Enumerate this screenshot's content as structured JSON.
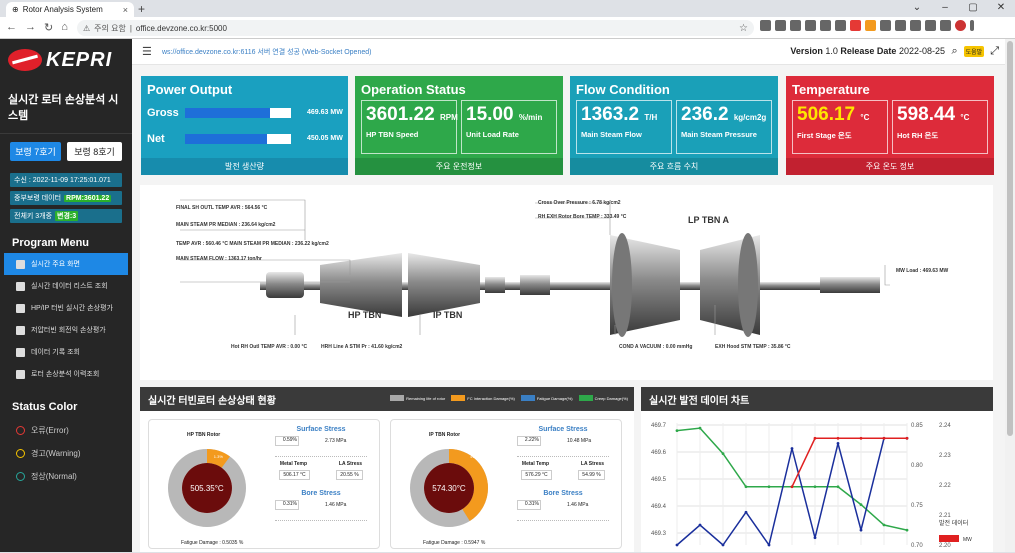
{
  "browser": {
    "tab_title": "Rotor Analysis System",
    "security_label": "주의 요함",
    "url": "office.devzone.co.kr:5000"
  },
  "sidebar": {
    "logo_text": "KEPRI",
    "system_title": "실시간 로터 손상분석 시스템",
    "unit7": "보령 7호기",
    "unit8": "보령 8호기",
    "received": "수신 : 2022-11-09 17:25:01.071",
    "load_label": "중부보령 데이터",
    "rpm_tag": "RPM:3601.22",
    "total_label": "전체키 3개중",
    "change_tag": "변경:3",
    "menu_title": "Program Menu",
    "menu": [
      {
        "label": "실시간 주요 화면",
        "icon": "home-icon"
      },
      {
        "label": "실시간 데이터 리스트 조회",
        "icon": "grid-icon"
      },
      {
        "label": "HP/IP 터빈 실시간 손상평가",
        "icon": "pie-chart-icon"
      },
      {
        "label": "저압터빈 회전익 손상평가",
        "icon": "tune-icon"
      },
      {
        "label": "데이터 기록 조회",
        "icon": "folder-icon"
      },
      {
        "label": "로터 손상분석 이력조회",
        "icon": "mail-icon"
      }
    ],
    "status_title": "Status Color",
    "status": [
      {
        "label": "오류(Error)",
        "color": "#e53935"
      },
      {
        "label": "경고(Warning)",
        "color": "#f6c400"
      },
      {
        "label": "정상(Normal)",
        "color": "#26a69a"
      }
    ]
  },
  "topbar": {
    "ws": "ws://office.devzone.co.kr:6116 서버 연결 성공 (Web-Socket Opened)",
    "version_label": "Version",
    "version": "1.0",
    "release_label": "Release Date",
    "release": "2022-08-25",
    "help": "도움말"
  },
  "cards": {
    "power": {
      "title": "Power Output",
      "gross_label": "Gross",
      "gross_value": "469.63",
      "gross_unit": "MW",
      "gross_fill": 0.8,
      "net_label": "Net",
      "net_value": "450.05",
      "net_unit": "MW",
      "net_fill": 0.77,
      "footer": "발전 생산량",
      "color": "#1aa0c0"
    },
    "operation": {
      "title": "Operation Status",
      "rpm": "3601.22",
      "rpm_unit": "RPM",
      "rpm_label": "HP TBN Speed",
      "rate": "15.00",
      "rate_unit": "%/min",
      "rate_label": "Unit Load Rate",
      "footer": "주요 운전정보",
      "color": "#2ea84a"
    },
    "flow": {
      "title": "Flow Condition",
      "flow": "1363.2",
      "flow_unit": "T/H",
      "flow_label": "Main Steam Flow",
      "press": "236.2",
      "press_unit": "kg/cm2g",
      "press_label": "Main Steam Pressure",
      "footer": "주요 흐름 수치",
      "color": "#1aa0b8"
    },
    "temp": {
      "title": "Temperature",
      "t1": "506.17",
      "t1_unit": "°C",
      "t1_label": "First Stage 온도",
      "t2": "598.44",
      "t2_unit": "°C",
      "t2_label": "Hot RH 온도",
      "footer": "주요 온도 정보",
      "color": "#dd2b3a"
    }
  },
  "diagram": {
    "labels": [
      "FINAL SH OUTL TEMP AVR : 564.56 °C",
      "MAIN STEAM PR MEDIAN : 236.64 kg/cm2",
      "TEMP AVR : 560.46 °C   MAIN STEAM PR MEDIAN : 236.22 kg/cm2",
      "MAIN STEAM FLOW : 1363.17 ton/hr",
      "Cross Over Pressure : 6.78 kg/cm2",
      "RH EXH Rotor Bore TEMP : 333.49 °C",
      "MW Load : 469.63 MW",
      "Hot RH Outl TEMP AVR : 0.00 °C",
      "HRH Line A STM Pr : 41.60 kg/cm2",
      "COND A VACUUM : 0.00 mmHg",
      "EXH Hood STM TEMP : 35.86 °C"
    ],
    "hp": "HP TBN",
    "ip": "IP TBN",
    "lp": "LP TBN A"
  },
  "damage": {
    "title": "실시간 터빈로터 손상상태 현황",
    "legend": [
      {
        "label": "Remaining life of rotor",
        "color": "#a8a8a8"
      },
      {
        "label": "FC Interaction Damage(%)",
        "color": "#f39a1e"
      },
      {
        "label": "Fatigue Damage(%)",
        "color": "#3a7fc4"
      },
      {
        "label": "Creep Damage(%)",
        "color": "#2ea84a"
      }
    ],
    "rotors": [
      {
        "name": "HP TBN Rotor",
        "temp": "505.35°C",
        "fc_pct": "1.3%",
        "remain_pct": "98.7%",
        "fc_frac": 0.1,
        "surface": "Surface Stress",
        "s_pct": "0.59%",
        "s_mpa": "2.73 MPa",
        "metal_label": "Metal Temp",
        "la_label": "LA Stress",
        "metal": "506.17",
        "metal_unit": "°C",
        "la": "20.55",
        "la_unit": "%",
        "bore": "Bore Stress",
        "b_pct": "0.31%",
        "b_mpa": "1.46 MPa",
        "fatigue": "Fatigue Damage : 0.5035 %"
      },
      {
        "name": "IP TBN Rotor",
        "temp": "574.30°C",
        "fc_pct": "41.4%",
        "remain_pct": "58.6%",
        "fc_frac": 0.41,
        "surface": "Surface Stress",
        "s_pct": "2.22%",
        "s_mpa": "10.48 MPa",
        "metal_label": "Metal Temp",
        "la_label": "LA Stress",
        "metal": "576.29",
        "metal_unit": "°C",
        "la": "54.99",
        "la_unit": "%",
        "bore": "Bore Stress",
        "b_pct": "0.31%",
        "b_mpa": "1.46 MPa",
        "fatigue": "Fatigue Damage : 0.5947 %"
      }
    ]
  },
  "chart_data": {
    "type": "line",
    "title": "실시간 발전 데이터 차트",
    "y_left_ticks": [
      "469.7",
      "469.6",
      "469.5",
      "469.4",
      "469.3"
    ],
    "y_right1_ticks": [
      "0.85",
      "0.80",
      "0.75",
      "0.70"
    ],
    "y_right2_ticks": [
      "2.24",
      "2.23",
      "2.22",
      "2.21",
      "2.20"
    ],
    "ylim_left": [
      469.3,
      469.7
    ],
    "legend_title": "발전 데이터",
    "legend": [
      {
        "name": "MW",
        "color": "#e02020"
      }
    ],
    "series": [
      {
        "color": "#2ea84a",
        "values": [
          469.67,
          469.68,
          469.58,
          469.45,
          469.45,
          469.45,
          469.45,
          469.45,
          469.38,
          469.3,
          469.28
        ]
      },
      {
        "color": "#1a2f9c",
        "values": [
          469.15,
          469.3,
          469.15,
          469.35,
          469.2,
          469.6,
          469.25,
          469.62,
          469.28,
          469.64,
          469.64
        ]
      },
      {
        "color": "#e02020",
        "values": [
          null,
          null,
          null,
          null,
          null,
          469.45,
          469.64,
          469.64,
          469.64,
          469.64,
          469.64
        ]
      }
    ]
  }
}
